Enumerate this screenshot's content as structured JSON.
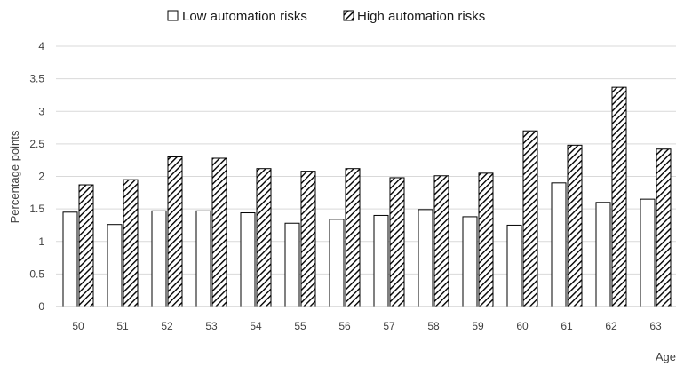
{
  "chart_data": {
    "type": "bar",
    "title": "",
    "xlabel": "Age",
    "ylabel": "Percentage points",
    "categories": [
      "50",
      "51",
      "52",
      "53",
      "54",
      "55",
      "56",
      "57",
      "58",
      "59",
      "60",
      "61",
      "62",
      "63"
    ],
    "series": [
      {
        "name": "Low automation risks",
        "pattern": "solid-white",
        "values": [
          1.45,
          1.26,
          1.47,
          1.47,
          1.44,
          1.28,
          1.34,
          1.4,
          1.49,
          1.38,
          1.25,
          1.9,
          1.6,
          1.65
        ]
      },
      {
        "name": "High automation risks",
        "pattern": "diagonal-hatch",
        "values": [
          1.87,
          1.95,
          2.3,
          2.28,
          2.12,
          2.08,
          2.12,
          1.98,
          2.01,
          2.05,
          2.7,
          2.48,
          3.37,
          2.42
        ]
      }
    ],
    "yticks": [
      "0",
      "0.5",
      "1",
      "1.5",
      "2",
      "2.5",
      "3",
      "3.5",
      "4"
    ],
    "ylim": [
      0,
      4
    ],
    "grid": true,
    "legend_position": "top-center",
    "colors": {
      "bar_edge": "#000000",
      "bar_fill": "#ffffff",
      "hatch": "#000000",
      "grid": "#d9d9d9",
      "axis": "#bfbfbf"
    }
  }
}
